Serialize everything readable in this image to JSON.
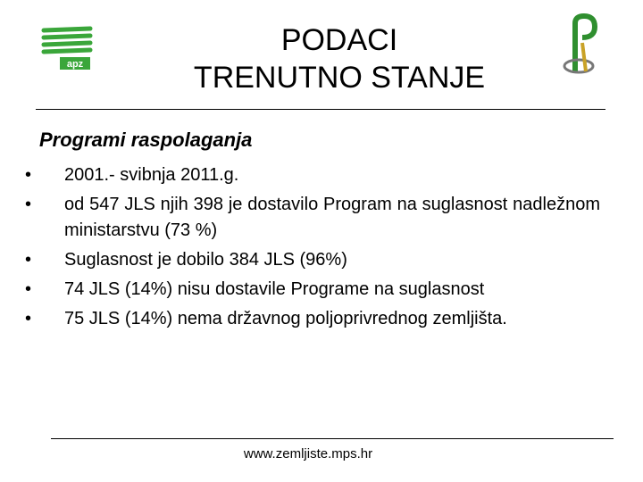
{
  "header": {
    "title_lines": [
      "PODACI",
      "TRENUTNO STANJE"
    ],
    "logo_left_text": "apz"
  },
  "section_title": "Programi raspolaganja",
  "bullets": [
    "2001.- svibnja 2011.g.",
    "od 547 JLS njih 398 je dostavilo Program na suglasnost nadležnom ministarstvu (73 %)",
    "Suglasnost je dobilo 384 JLS (96%)",
    "74 JLS (14%) nisu dostavile Programe na suglasnost",
    "75 JLS (14%) nema državnog poljoprivrednog zemljišta."
  ],
  "footer": {
    "url": "www.zemljiste.mps.hr"
  }
}
